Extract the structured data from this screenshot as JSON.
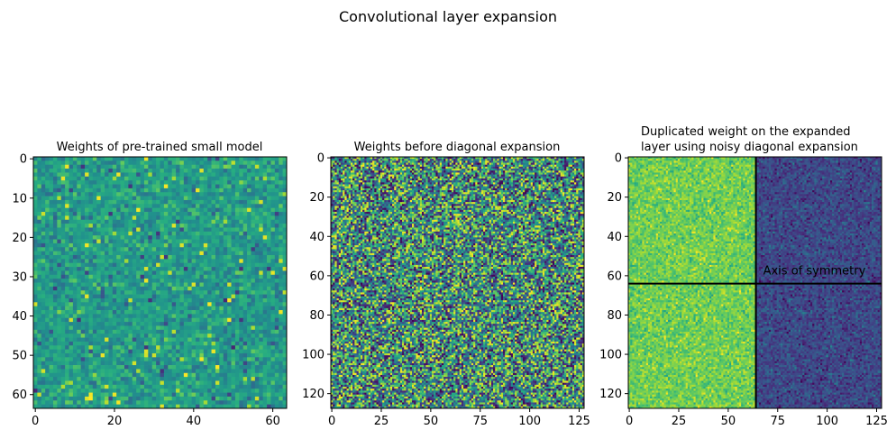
{
  "chart_data": {
    "suptitle": "Convolutional layer expansion",
    "panels": [
      {
        "type": "heatmap",
        "title_lines": [
          "Weights of pre-trained small model"
        ],
        "size": 64,
        "xticks": [
          0,
          20,
          40,
          60
        ],
        "yticks": [
          0,
          10,
          20,
          30,
          40,
          50,
          60
        ],
        "colormap": "viridis",
        "pattern": "narrow noise centred on mid-range (teal), occasional bright yellow and dark purple cells",
        "value_range": [
          0,
          1
        ]
      },
      {
        "type": "heatmap",
        "title_lines": [
          "Weights before diagonal expansion"
        ],
        "size": 128,
        "xticks": [
          0,
          25,
          50,
          75,
          100,
          125
        ],
        "yticks": [
          0,
          20,
          40,
          60,
          80,
          100,
          120
        ],
        "colormap": "viridis",
        "pattern": "wide uniform noise across full colormap",
        "value_range": [
          0,
          1
        ]
      },
      {
        "type": "heatmap",
        "title_lines": [
          "Duplicated weight on the expanded",
          "layer using noisy diagonal expansion"
        ],
        "size": 128,
        "xticks": [
          0,
          25,
          50,
          75,
          100,
          125
        ],
        "yticks": [
          0,
          20,
          40,
          60,
          80,
          100,
          120
        ],
        "colormap": "viridis",
        "pattern": "left half (cols 0-63) bright green-yellow noise, right half (cols 64-127) dark blue-purple noise",
        "split_at": 64,
        "vline_x": 64,
        "hline_y": 64,
        "annotation": "Axis of symmetry",
        "value_range": [
          0,
          1
        ]
      }
    ]
  },
  "colors": {
    "line": "#000000",
    "background": "#ffffff"
  }
}
